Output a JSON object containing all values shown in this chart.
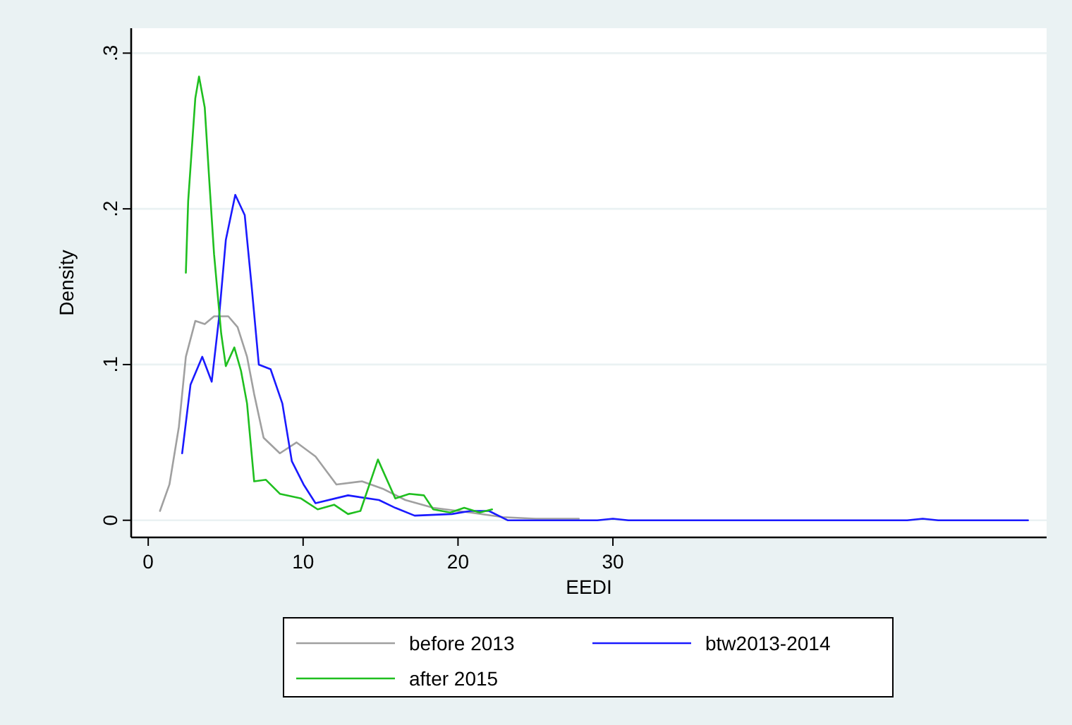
{
  "chart_data": {
    "type": "line",
    "xlabel": "EEDI",
    "ylabel": "Density",
    "xlim": [
      -1.1,
      58
    ],
    "ylim": [
      -0.011,
      0.316
    ],
    "xticks": [
      0,
      10,
      20,
      30
    ],
    "yticks": [
      0,
      {
        "value": 0.1,
        "label": ".1"
      },
      {
        "value": 0.2,
        "label": ".2"
      },
      {
        "value": 0.3,
        "label": ".3"
      }
    ],
    "grid": "y",
    "legend": "bottom",
    "line_style": "solid",
    "marker": "none",
    "series": [
      {
        "name": "before 2013",
        "color": "#a0a0a0",
        "x": [
          0.76,
          1.37,
          1.98,
          2.43,
          3.04,
          3.65,
          4.25,
          5.17,
          5.77,
          6.38,
          6.84,
          7.45,
          8.5,
          9.57,
          10.8,
          12.15,
          13.8,
          15.2,
          16.6,
          18.4,
          20.8,
          22.9,
          25,
          27.8
        ],
        "values": [
          0.006,
          0.023,
          0.06,
          0.105,
          0.128,
          0.126,
          0.131,
          0.131,
          0.124,
          0.105,
          0.081,
          0.053,
          0.043,
          0.05,
          0.041,
          0.023,
          0.025,
          0.02,
          0.013,
          0.008,
          0.005,
          0.002,
          0.001,
          0.001
        ]
      },
      {
        "name": "btw2013-2014",
        "color": "#1a1aff",
        "x": [
          2.19,
          2.73,
          3.49,
          4.1,
          4.56,
          5.01,
          5.62,
          6.23,
          6.68,
          7.14,
          7.9,
          8.66,
          9.27,
          10.03,
          10.8,
          12.9,
          14.9,
          15.95,
          17.2,
          19.6,
          20.8,
          22,
          23.2,
          29,
          30,
          31,
          49,
          50,
          51,
          56.8
        ],
        "values": [
          0.043,
          0.087,
          0.105,
          0.089,
          0.129,
          0.18,
          0.209,
          0.196,
          0.15,
          0.1,
          0.097,
          0.075,
          0.038,
          0.023,
          0.011,
          0.016,
          0.013,
          0.008,
          0.003,
          0.004,
          0.006,
          0.006,
          0,
          0,
          0.001,
          0,
          0,
          0.001,
          0,
          0
        ]
      },
      {
        "name": "after 2015",
        "color": "#1fbf1f",
        "x": [
          2.43,
          2.58,
          3.04,
          3.28,
          3.65,
          3.95,
          4.25,
          4.71,
          5.01,
          5.56,
          5.99,
          6.38,
          6.84,
          7.6,
          8.5,
          9.87,
          10.94,
          12,
          12.9,
          13.7,
          14.83,
          15.95,
          16.86,
          17.8,
          18.4,
          19.5,
          20.4,
          21.4,
          22.2
        ],
        "values": [
          0.159,
          0.205,
          0.271,
          0.285,
          0.265,
          0.217,
          0.171,
          0.12,
          0.099,
          0.111,
          0.096,
          0.075,
          0.025,
          0.026,
          0.017,
          0.014,
          0.007,
          0.01,
          0.004,
          0.006,
          0.039,
          0.014,
          0.017,
          0.016,
          0.007,
          0.005,
          0.008,
          0.005,
          0.007
        ]
      }
    ]
  }
}
